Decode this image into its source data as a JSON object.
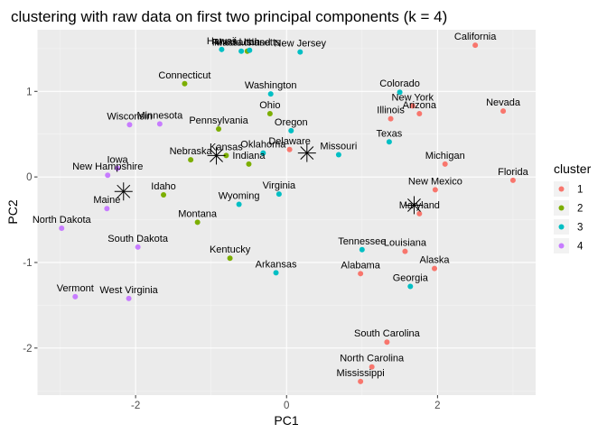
{
  "chart_data": {
    "type": "scatter",
    "title": "clustering with raw data on first two principal components (k = 4)",
    "xlabel": "PC1",
    "ylabel": "PC2",
    "xlim": [
      -3.3,
      3.3
    ],
    "ylim": [
      -2.55,
      1.72
    ],
    "x_ticks": [
      -2,
      0,
      2
    ],
    "y_ticks": [
      -2,
      -1,
      0,
      1
    ],
    "grid": true,
    "legend": {
      "title": "cluster",
      "placement": "right",
      "entries": [
        {
          "key": "1",
          "color": "#F8766D"
        },
        {
          "key": "2",
          "color": "#7CAE00"
        },
        {
          "key": "3",
          "color": "#00BFC4"
        },
        {
          "key": "4",
          "color": "#C77CFF"
        }
      ]
    },
    "points": [
      {
        "label": "California",
        "x": 2.5,
        "y": 1.54,
        "cluster": "1"
      },
      {
        "label": "Nevada",
        "x": 2.87,
        "y": 0.77,
        "cluster": "1"
      },
      {
        "label": "New York",
        "x": 1.67,
        "y": 0.83,
        "cluster": "1"
      },
      {
        "label": "Arizona",
        "x": 1.76,
        "y": 0.74,
        "cluster": "1"
      },
      {
        "label": "Illinois",
        "x": 1.38,
        "y": 0.68,
        "cluster": "1"
      },
      {
        "label": "Michigan",
        "x": 2.1,
        "y": 0.15,
        "cluster": "1"
      },
      {
        "label": "Florida",
        "x": 3.0,
        "y": -0.04,
        "cluster": "1"
      },
      {
        "label": "New Mexico",
        "x": 1.97,
        "y": -0.15,
        "cluster": "1"
      },
      {
        "label": "Maryland",
        "x": 1.76,
        "y": -0.43,
        "cluster": "1"
      },
      {
        "label": "Louisiana",
        "x": 1.57,
        "y": -0.87,
        "cluster": "1"
      },
      {
        "label": "Alaska",
        "x": 1.96,
        "y": -1.07,
        "cluster": "1"
      },
      {
        "label": "Alabama",
        "x": 0.98,
        "y": -1.13,
        "cluster": "1"
      },
      {
        "label": "South Carolina",
        "x": 1.33,
        "y": -1.93,
        "cluster": "1"
      },
      {
        "label": "North Carolina",
        "x": 1.13,
        "y": -2.22,
        "cluster": "1"
      },
      {
        "label": "Mississippi",
        "x": 0.98,
        "y": -2.39,
        "cluster": "1"
      },
      {
        "label": "Delaware",
        "x": 0.04,
        "y": 0.32,
        "cluster": "1"
      },
      {
        "label": "Massachusetts",
        "x": -0.52,
        "y": 1.47,
        "cluster": "2"
      },
      {
        "label": "Connecticut",
        "x": -1.35,
        "y": 1.09,
        "cluster": "2"
      },
      {
        "label": "Pennsylvania",
        "x": -0.9,
        "y": 0.56,
        "cluster": "2"
      },
      {
        "label": "Ohio",
        "x": -0.22,
        "y": 0.74,
        "cluster": "2"
      },
      {
        "label": "Kansas",
        "x": -0.8,
        "y": 0.25,
        "cluster": "2"
      },
      {
        "label": "Nebraska",
        "x": -1.27,
        "y": 0.2,
        "cluster": "2"
      },
      {
        "label": "Indiana",
        "x": -0.5,
        "y": 0.15,
        "cluster": "2"
      },
      {
        "label": "Idaho",
        "x": -1.63,
        "y": -0.21,
        "cluster": "2"
      },
      {
        "label": "Montana",
        "x": -1.18,
        "y": -0.53,
        "cluster": "2"
      },
      {
        "label": "Kentucky",
        "x": -0.75,
        "y": -0.95,
        "cluster": "2"
      },
      {
        "label": "Hawaii",
        "x": -0.86,
        "y": 1.49,
        "cluster": "3"
      },
      {
        "label": "Utah",
        "x": -0.49,
        "y": 1.48,
        "cluster": "3"
      },
      {
        "label": "New Jersey",
        "x": 0.18,
        "y": 1.46,
        "cluster": "3"
      },
      {
        "label": "Washington",
        "x": -0.21,
        "y": 0.97,
        "cluster": "3"
      },
      {
        "label": "Oregon",
        "x": 0.06,
        "y": 0.54,
        "cluster": "3"
      },
      {
        "label": "Colorado",
        "x": 1.5,
        "y": 0.99,
        "cluster": "3"
      },
      {
        "label": "Texas",
        "x": 1.36,
        "y": 0.41,
        "cluster": "3"
      },
      {
        "label": "Missouri",
        "x": 0.69,
        "y": 0.26,
        "cluster": "3"
      },
      {
        "label": "Oklahoma",
        "x": -0.31,
        "y": 0.28,
        "cluster": "3"
      },
      {
        "label": "Virginia",
        "x": -0.1,
        "y": -0.2,
        "cluster": "3"
      },
      {
        "label": "Wyoming",
        "x": -0.63,
        "y": -0.32,
        "cluster": "3"
      },
      {
        "label": "Tennessee",
        "x": 1.0,
        "y": -0.85,
        "cluster": "3"
      },
      {
        "label": "Georgia",
        "x": 1.64,
        "y": -1.28,
        "cluster": "3"
      },
      {
        "label": "Arkansas",
        "x": -0.14,
        "y": -1.12,
        "cluster": "3"
      },
      {
        "label": "Rhode Island",
        "x": -0.6,
        "y": 1.47,
        "cluster": "3"
      },
      {
        "label": "Wisconsin",
        "x": -2.08,
        "y": 0.61,
        "cluster": "4"
      },
      {
        "label": "Minnesota",
        "x": -1.68,
        "y": 0.62,
        "cluster": "4"
      },
      {
        "label": "Iowa",
        "x": -2.24,
        "y": 0.1,
        "cluster": "4"
      },
      {
        "label": "New Hampshire",
        "x": -2.37,
        "y": 0.02,
        "cluster": "4"
      },
      {
        "label": "Maine",
        "x": -2.38,
        "y": -0.37,
        "cluster": "4"
      },
      {
        "label": "North Dakota",
        "x": -2.98,
        "y": -0.6,
        "cluster": "4"
      },
      {
        "label": "South Dakota",
        "x": -1.97,
        "y": -0.82,
        "cluster": "4"
      },
      {
        "label": "Vermont",
        "x": -2.8,
        "y": -1.4,
        "cluster": "4"
      },
      {
        "label": "West Virginia",
        "x": -2.09,
        "y": -1.42,
        "cluster": "4"
      }
    ],
    "centers": [
      {
        "x": 1.69,
        "y": -0.33
      },
      {
        "x": 0.27,
        "y": 0.28
      },
      {
        "x": -0.93,
        "y": 0.25
      },
      {
        "x": -2.16,
        "y": -0.17
      }
    ]
  }
}
